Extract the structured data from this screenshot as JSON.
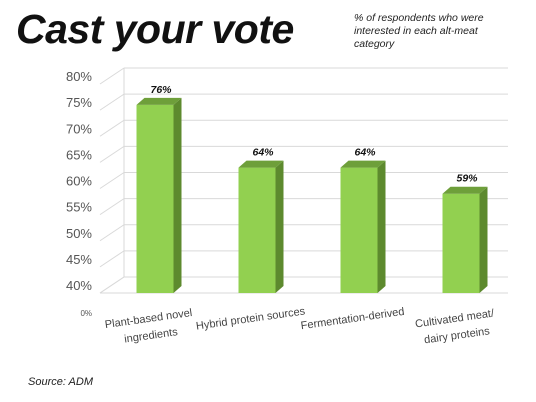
{
  "title": "Cast your vote",
  "subtitle": "% of respondents who were interested in each alt-meat category",
  "source": "Source: ADM",
  "colors": {
    "bar_front": "#92d050",
    "bar_side": "#5d8a2e",
    "bar_top": "#6e9f3a",
    "grid": "#d9d9d9"
  },
  "chart_data": {
    "type": "bar",
    "title": "Cast your vote",
    "categories": [
      [
        "Plant-based novel",
        "ingredients"
      ],
      [
        "Hybrid protein sources"
      ],
      [
        "Fermentation-derived"
      ],
      [
        "Cultivated meat/",
        "dairy proteins"
      ]
    ],
    "values": [
      76,
      64,
      64,
      59
    ],
    "data_labels": [
      "76%",
      "64%",
      "64%",
      "59%"
    ],
    "yticks": [
      "40%",
      "45%",
      "50%",
      "55%",
      "60%",
      "65%",
      "70%",
      "75%",
      "80%"
    ],
    "ytick_values": [
      40,
      45,
      50,
      55,
      60,
      65,
      70,
      75,
      80
    ],
    "base_label": "0%",
    "ylim": [
      40,
      80
    ],
    "grid": true,
    "legend": "none"
  }
}
